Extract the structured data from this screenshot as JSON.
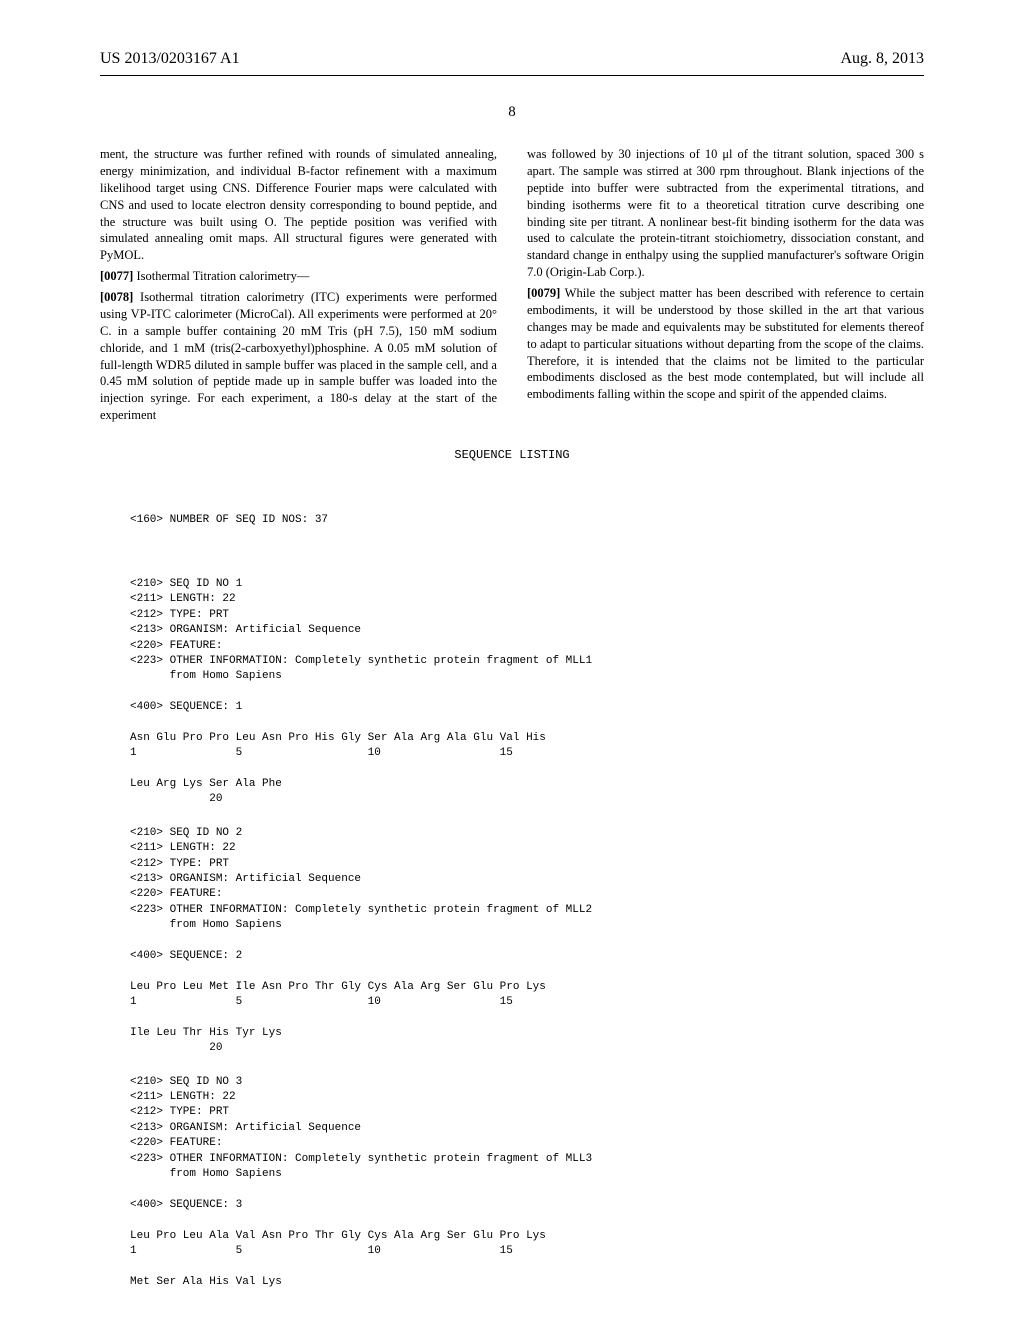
{
  "header": {
    "publication_number": "US 2013/0203167 A1",
    "publication_date": "Aug. 8, 2013"
  },
  "page_number": "8",
  "columns": {
    "left": {
      "para_continuation": "ment, the structure was further refined with rounds of simulated annealing, energy minimization, and individual B-factor refinement with a maximum likelihood target using CNS. Difference Fourier maps were calculated with CNS and used to locate electron density corresponding to bound peptide, and the structure was built using O. The peptide position was verified with simulated annealing omit maps. All structural figures were generated with PyMOL.",
      "para_0077_num": "[0077]",
      "para_0077_text": "    Isothermal Titration calorimetry—",
      "para_0078_num": "[0078]",
      "para_0078_text": "    Isothermal titration calorimetry (ITC) experiments were performed using VP-ITC calorimeter (MicroCal). All experiments were performed at 20° C. in a sample buffer containing 20 mM Tris (pH 7.5), 150 mM sodium chloride, and 1 mM (tris(2-carboxyethyl)phosphine. A 0.05 mM solution of full-length WDR5 diluted in sample buffer was placed in the sample cell, and a 0.45 mM solution of peptide made up in sample buffer was loaded into the injection syringe. For each experiment, a 180-s delay at the start of the experiment"
    },
    "right": {
      "para_continuation": "was followed by 30 injections of 10 μl of the titrant solution, spaced 300 s apart. The sample was stirred at 300 rpm throughout. Blank injections of the peptide into buffer were subtracted from the experimental titrations, and binding isotherms were fit to a theoretical titration curve describing one binding site per titrant. A nonlinear best-fit binding isotherm for the data was used to calculate the protein-titrant stoichiometry, dissociation constant, and standard change in enthalpy using the supplied manufacturer's software Origin 7.0 (Origin-Lab Corp.).",
      "para_0079_num": "[0079]",
      "para_0079_text": "    While the subject matter has been described with reference to certain embodiments, it will be understood by those skilled in the art that various changes may be made and equivalents may be substituted for elements thereof to adapt to particular situations without departing from the scope of the claims. Therefore, it is intended that the claims not be limited to the particular embodiments disclosed as the best mode contemplated, but will include all embodiments falling within the scope and spirit of the appended claims."
    }
  },
  "sequence_listing": {
    "title": "SEQUENCE LISTING",
    "header_160": "<160> NUMBER OF SEQ ID NOS: 37",
    "entries": [
      {
        "lines": [
          "<210> SEQ ID NO 1",
          "<211> LENGTH: 22",
          "<212> TYPE: PRT",
          "<213> ORGANISM: Artificial Sequence",
          "<220> FEATURE:",
          "<223> OTHER INFORMATION: Completely synthetic protein fragment of MLL1",
          "      from Homo Sapiens",
          "",
          "<400> SEQUENCE: 1",
          "",
          "Asn Glu Pro Pro Leu Asn Pro His Gly Ser Ala Arg Ala Glu Val His",
          "1               5                   10                  15",
          "",
          "Leu Arg Lys Ser Ala Phe",
          "            20"
        ]
      },
      {
        "lines": [
          "<210> SEQ ID NO 2",
          "<211> LENGTH: 22",
          "<212> TYPE: PRT",
          "<213> ORGANISM: Artificial Sequence",
          "<220> FEATURE:",
          "<223> OTHER INFORMATION: Completely synthetic protein fragment of MLL2",
          "      from Homo Sapiens",
          "",
          "<400> SEQUENCE: 2",
          "",
          "Leu Pro Leu Met Ile Asn Pro Thr Gly Cys Ala Arg Ser Glu Pro Lys",
          "1               5                   10                  15",
          "",
          "Ile Leu Thr His Tyr Lys",
          "            20"
        ]
      },
      {
        "lines": [
          "<210> SEQ ID NO 3",
          "<211> LENGTH: 22",
          "<212> TYPE: PRT",
          "<213> ORGANISM: Artificial Sequence",
          "<220> FEATURE:",
          "<223> OTHER INFORMATION: Completely synthetic protein fragment of MLL3",
          "      from Homo Sapiens",
          "",
          "<400> SEQUENCE: 3",
          "",
          "Leu Pro Leu Ala Val Asn Pro Thr Gly Cys Ala Arg Ser Glu Pro Lys",
          "1               5                   10                  15",
          "",
          "Met Ser Ala His Val Lys"
        ]
      }
    ]
  }
}
